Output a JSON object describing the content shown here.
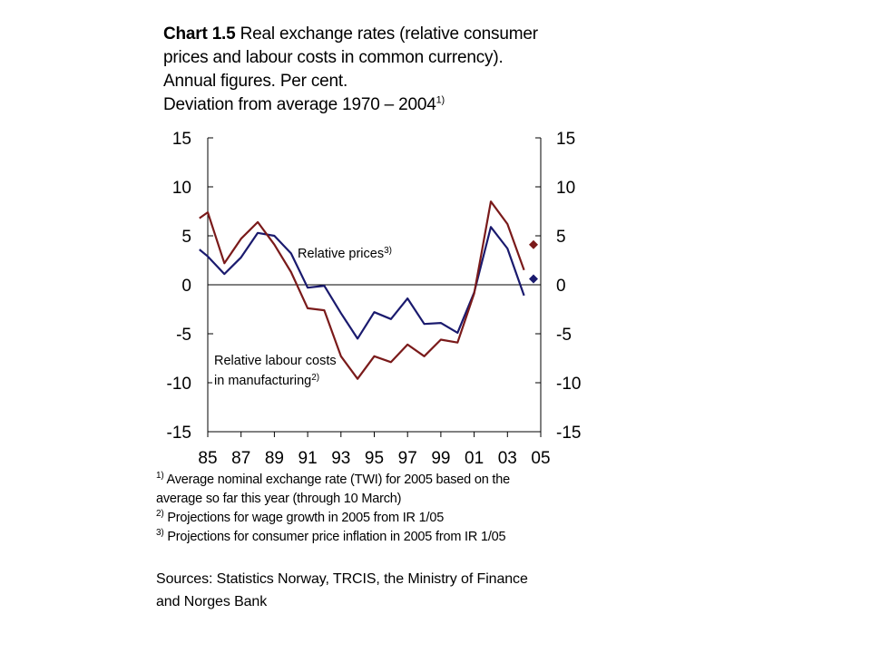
{
  "title": {
    "bold": "Chart 1.5",
    "line1_rest": " Real exchange rates (relative consumer",
    "line2": "prices and labour costs in common currency).",
    "line3": "Annual figures. Per cent.",
    "line4": "Deviation from average 1970 – 2004",
    "line4_sup": "1)"
  },
  "chart_data": {
    "type": "line",
    "ylim": [
      -15,
      15
    ],
    "y_ticks": [
      "15",
      "10",
      "5",
      "0",
      "-5",
      "-10",
      "-15"
    ],
    "y_tick_values": [
      15,
      10,
      5,
      0,
      -5,
      -10,
      -15
    ],
    "x_tick_labels": [
      "85",
      "87",
      "89",
      "91",
      "93",
      "95",
      "97",
      "99",
      "01",
      "03",
      "05"
    ],
    "x_tick_years": [
      1985,
      1987,
      1989,
      1991,
      1993,
      1995,
      1997,
      1999,
      2001,
      2003,
      2005
    ],
    "xlim": [
      1985,
      2005
    ],
    "grid": false,
    "series": [
      {
        "name": "Relative prices",
        "name_sup": "3)",
        "color": "#1a1a6e",
        "x": [
          1984.5,
          1985,
          1986,
          1987,
          1988,
          1989,
          1990,
          1991,
          1992,
          1993,
          1994,
          1995,
          1996,
          1997,
          1998,
          1999,
          2000,
          2001,
          2002,
          2003,
          2004
        ],
        "values": [
          3.6,
          2.9,
          1.1,
          2.8,
          5.3,
          5.0,
          3.2,
          -0.3,
          -0.1,
          -2.9,
          -5.5,
          -2.8,
          -3.5,
          -1.4,
          -4.0,
          -3.9,
          -4.9,
          -0.8,
          5.9,
          3.7,
          -1.1
        ],
        "projection": {
          "x": 2005,
          "value": 0.6
        }
      },
      {
        "name": "Relative labour costs in manufacturing",
        "name_line1": "Relative labour costs",
        "name_line2": "in manufacturing",
        "name_sup": "2)",
        "color": "#7a1a1a",
        "x": [
          1984.5,
          1985,
          1986,
          1987,
          1988,
          1989,
          1990,
          1991,
          1992,
          1993,
          1994,
          1995,
          1996,
          1997,
          1998,
          1999,
          2000,
          2001,
          2002,
          2003,
          2004
        ],
        "values": [
          6.8,
          7.4,
          2.2,
          4.7,
          6.4,
          4.1,
          1.3,
          -2.4,
          -2.6,
          -7.3,
          -9.6,
          -7.3,
          -7.9,
          -6.1,
          -7.3,
          -5.6,
          -5.9,
          -0.9,
          8.5,
          6.2,
          1.5
        ],
        "projection": {
          "x": 2005,
          "value": 4.1
        }
      }
    ]
  },
  "footnotes": [
    {
      "sup": "1)",
      "text": " Average nominal exchange rate (TWI) for 2005 based on the",
      "line2": "average so far this year (through 10 March)"
    },
    {
      "sup": "2)",
      "text": "  Projections for wage growth in 2005 from IR 1/05"
    },
    {
      "sup": "3)",
      "text": " Projections for consumer price inflation in 2005 from IR 1/05"
    }
  ],
  "sources": {
    "line1": "Sources: Statistics Norway, TRCIS, the Ministry of Finance",
    "line2": "and Norges Bank"
  }
}
